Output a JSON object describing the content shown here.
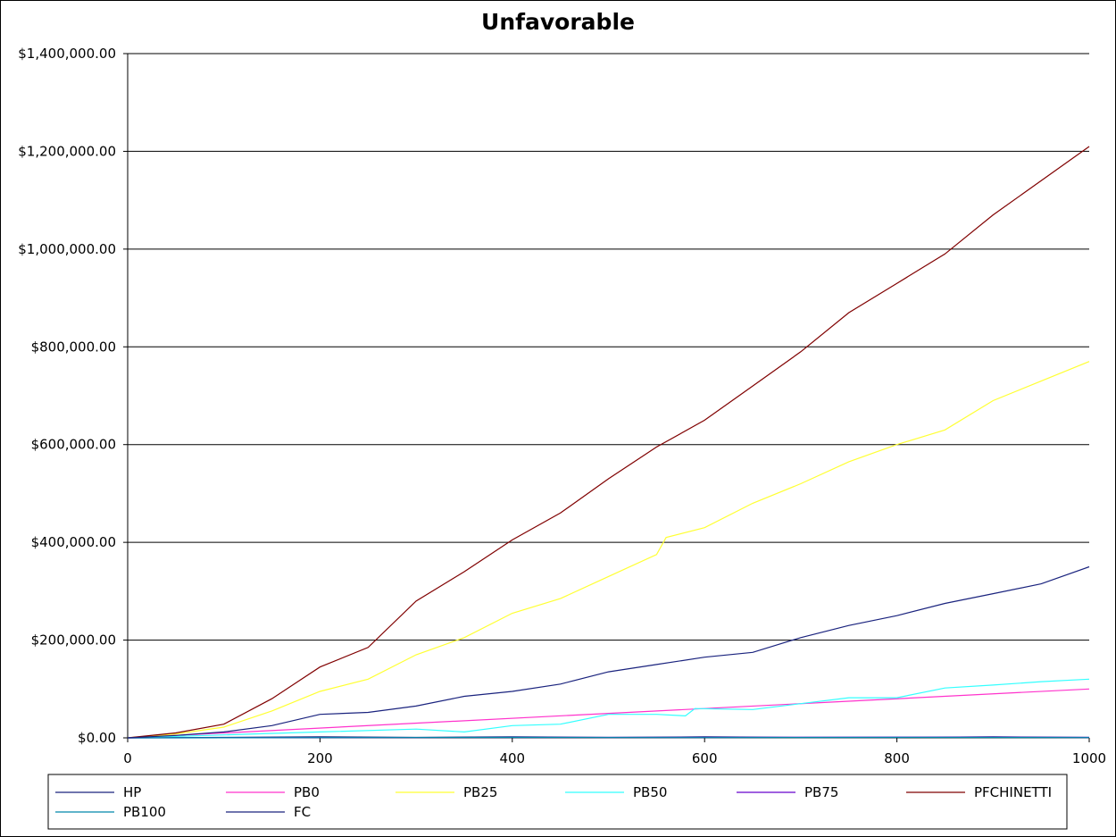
{
  "chart_data": {
    "type": "line",
    "title": "Unfavorable",
    "xlabel": "",
    "ylabel": "",
    "xlim": [
      0,
      1000
    ],
    "ylim": [
      0,
      1400000
    ],
    "x_ticks": [
      0,
      200,
      400,
      600,
      800,
      1000
    ],
    "x_tick_labels": [
      "0",
      "200",
      "400",
      "600",
      "800",
      "1000"
    ],
    "y_ticks": [
      0,
      200000,
      400000,
      600000,
      800000,
      1000000,
      1200000,
      1400000
    ],
    "y_tick_labels": [
      "$0.00",
      "$200,000.00",
      "$400,000.00",
      "$600,000.00",
      "$800,000.00",
      "$1,000,000.00",
      "$1,200,000.00",
      "$1,400,000.00"
    ],
    "grid": "horizontal",
    "legend_position": "bottom",
    "series": [
      {
        "name": "HP",
        "color": "#1a237e",
        "x": [
          0,
          100,
          200,
          300,
          400,
          500,
          600,
          700,
          800,
          900,
          1000
        ],
        "values": [
          0,
          1000,
          2000,
          1000,
          2000,
          1000,
          2000,
          1000,
          1000,
          2000,
          1000
        ]
      },
      {
        "name": "PB0",
        "color": "#ff33cc",
        "x": [
          0,
          1000
        ],
        "values": [
          0,
          100000
        ]
      },
      {
        "name": "PB25",
        "color": "#ffff33",
        "x": [
          0,
          50,
          100,
          150,
          200,
          250,
          300,
          350,
          400,
          450,
          500,
          550,
          560,
          600,
          650,
          700,
          750,
          800,
          850,
          900,
          950,
          1000
        ],
        "values": [
          0,
          8000,
          22000,
          55000,
          95000,
          120000,
          170000,
          205000,
          255000,
          285000,
          330000,
          375000,
          410000,
          430000,
          480000,
          520000,
          565000,
          600000,
          630000,
          690000,
          730000,
          770000
        ]
      },
      {
        "name": "PB50",
        "color": "#33ffff",
        "x": [
          0,
          100,
          200,
          300,
          350,
          400,
          450,
          500,
          550,
          580,
          590,
          650,
          700,
          750,
          800,
          850,
          900,
          950,
          1000
        ],
        "values": [
          0,
          6000,
          12000,
          18000,
          12000,
          25000,
          28000,
          48000,
          48000,
          45000,
          60000,
          58000,
          70000,
          82000,
          82000,
          102000,
          108000,
          115000,
          120000
        ]
      },
      {
        "name": "PB75",
        "color": "#6600cc",
        "x": [
          0,
          200,
          400,
          600,
          800,
          1000
        ],
        "values": [
          0,
          500,
          1000,
          1000,
          1500,
          1000
        ]
      },
      {
        "name": "PFCHINETTI",
        "color": "#800000",
        "x": [
          0,
          50,
          100,
          150,
          200,
          250,
          300,
          350,
          400,
          450,
          500,
          550,
          600,
          650,
          700,
          750,
          800,
          850,
          900,
          950,
          1000
        ],
        "values": [
          0,
          10000,
          28000,
          80000,
          145000,
          185000,
          280000,
          340000,
          405000,
          460000,
          530000,
          595000,
          650000,
          720000,
          790000,
          870000,
          930000,
          990000,
          1070000,
          1140000,
          1210000
        ]
      },
      {
        "name": "PB100",
        "color": "#0088aa",
        "x": [
          0,
          200,
          400,
          600,
          800,
          1000
        ],
        "values": [
          0,
          500,
          1000,
          500,
          1000,
          500
        ]
      },
      {
        "name": "FC",
        "color": "#1a237e",
        "x": [
          0,
          50,
          100,
          150,
          200,
          250,
          300,
          350,
          400,
          450,
          500,
          550,
          600,
          650,
          700,
          750,
          800,
          850,
          900,
          950,
          1000
        ],
        "values": [
          0,
          5000,
          12000,
          25000,
          48000,
          52000,
          65000,
          85000,
          95000,
          110000,
          135000,
          150000,
          165000,
          175000,
          205000,
          230000,
          250000,
          275000,
          295000,
          315000,
          350000
        ]
      }
    ]
  },
  "legend": {
    "rows": [
      [
        "HP",
        "PB0",
        "PB25",
        "PB50",
        "PB75",
        "PFCHINETTI"
      ],
      [
        "PB100",
        "FC"
      ]
    ]
  }
}
